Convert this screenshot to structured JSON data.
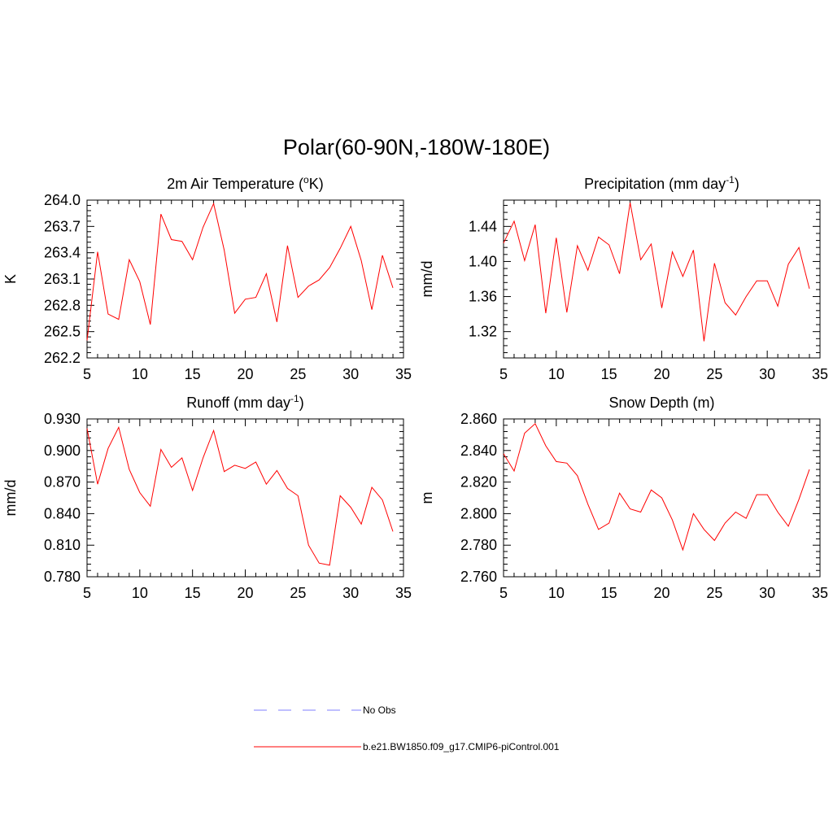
{
  "figure": {
    "title": "Polar(60-90N,-180W-180E)",
    "series_color": "#ff0000",
    "obs_color": "#9999ff"
  },
  "legend": [
    {
      "label": "No Obs",
      "style": "dashed",
      "color": "#9999ff"
    },
    {
      "label": "b.e21.BW1850.f09_g17.CMIP6-piControl.001",
      "style": "solid",
      "color": "#ff0000"
    }
  ],
  "chart_data": [
    {
      "type": "line",
      "title": "2m Air Temperature (",
      "title_sup": "o",
      "title_after": "K)",
      "ylabel": "K",
      "xlabel": "",
      "xlim": [
        5,
        35
      ],
      "ylim": [
        262.2,
        264.0
      ],
      "xticks": [
        5,
        10,
        15,
        20,
        25,
        30,
        35
      ],
      "yticks": [
        "262.2",
        "262.5",
        "262.8",
        "263.1",
        "263.4",
        "263.7",
        "264.0"
      ],
      "series": [
        {
          "name": "b.e21.BW1850.f09_g17.CMIP6-piControl.001",
          "x": [
            5,
            6,
            7,
            8,
            9,
            10,
            11,
            12,
            13,
            14,
            15,
            16,
            17,
            18,
            19,
            20,
            21,
            22,
            23,
            24,
            25,
            26,
            27,
            28,
            29,
            30,
            31,
            32,
            33,
            34
          ],
          "values": [
            262.4,
            263.41,
            262.7,
            262.64,
            263.32,
            263.07,
            262.58,
            263.84,
            263.55,
            263.53,
            263.32,
            263.69,
            263.96,
            263.43,
            262.71,
            262.87,
            262.89,
            263.16,
            262.61,
            263.48,
            262.89,
            263.02,
            263.09,
            263.23,
            263.45,
            263.7,
            263.31,
            262.75,
            263.37,
            263.0
          ]
        }
      ]
    },
    {
      "type": "line",
      "title": "Precipitation (mm day",
      "title_sup": "-1",
      "title_after": ")",
      "ylabel": "mm/d",
      "xlabel": "",
      "xlim": [
        5,
        35
      ],
      "ylim": [
        1.29,
        1.47
      ],
      "xticks": [
        5,
        10,
        15,
        20,
        25,
        30,
        35
      ],
      "yticks": [
        "1.32",
        "1.36",
        "1.40",
        "1.44"
      ],
      "series": [
        {
          "name": "b.e21.BW1850.f09_g17.CMIP6-piControl.001",
          "x": [
            5,
            6,
            7,
            8,
            9,
            10,
            11,
            12,
            13,
            14,
            15,
            16,
            17,
            18,
            19,
            20,
            21,
            22,
            23,
            24,
            25,
            26,
            27,
            28,
            29,
            30,
            31,
            32,
            33,
            34
          ],
          "values": [
            1.421,
            1.446,
            1.401,
            1.442,
            1.341,
            1.427,
            1.342,
            1.418,
            1.39,
            1.428,
            1.419,
            1.386,
            1.467,
            1.402,
            1.42,
            1.347,
            1.411,
            1.383,
            1.413,
            1.309,
            1.398,
            1.353,
            1.339,
            1.36,
            1.378,
            1.378,
            1.349,
            1.397,
            1.416,
            1.369
          ]
        }
      ]
    },
    {
      "type": "line",
      "title": "Runoff (mm day",
      "title_sup": "-1",
      "title_after": ")",
      "ylabel": "mm/d",
      "xlabel": "",
      "xlim": [
        5,
        35
      ],
      "ylim": [
        0.78,
        0.93
      ],
      "xticks": [
        5,
        10,
        15,
        20,
        25,
        30,
        35
      ],
      "yticks": [
        "0.780",
        "0.810",
        "0.840",
        "0.870",
        "0.900",
        "0.930"
      ],
      "series": [
        {
          "name": "b.e21.BW1850.f09_g17.CMIP6-piControl.001",
          "x": [
            5,
            6,
            7,
            8,
            9,
            10,
            11,
            12,
            13,
            14,
            15,
            16,
            17,
            18,
            19,
            20,
            21,
            22,
            23,
            24,
            25,
            26,
            27,
            28,
            29,
            30,
            31,
            32,
            33,
            34
          ],
          "values": [
            0.921,
            0.868,
            0.902,
            0.922,
            0.882,
            0.86,
            0.847,
            0.901,
            0.884,
            0.893,
            0.862,
            0.893,
            0.919,
            0.88,
            0.886,
            0.883,
            0.889,
            0.868,
            0.881,
            0.864,
            0.857,
            0.81,
            0.793,
            0.791,
            0.857,
            0.846,
            0.83,
            0.865,
            0.853,
            0.823
          ]
        }
      ]
    },
    {
      "type": "line",
      "title": "Snow Depth (m)",
      "title_sup": "",
      "title_after": "",
      "ylabel": "m",
      "xlabel": "",
      "xlim": [
        5,
        35
      ],
      "ylim": [
        2.76,
        2.86
      ],
      "xticks": [
        5,
        10,
        15,
        20,
        25,
        30,
        35
      ],
      "yticks": [
        "2.760",
        "2.780",
        "2.800",
        "2.820",
        "2.840",
        "2.860"
      ],
      "series": [
        {
          "name": "b.e21.BW1850.f09_g17.CMIP6-piControl.001",
          "x": [
            5,
            6,
            7,
            8,
            9,
            10,
            11,
            12,
            13,
            14,
            15,
            16,
            17,
            18,
            19,
            20,
            21,
            22,
            23,
            24,
            25,
            26,
            27,
            28,
            29,
            30,
            31,
            32,
            33,
            34
          ],
          "values": [
            2.838,
            2.827,
            2.851,
            2.857,
            2.843,
            2.833,
            2.832,
            2.824,
            2.806,
            2.79,
            2.794,
            2.813,
            2.803,
            2.801,
            2.815,
            2.81,
            2.796,
            2.777,
            2.8,
            2.79,
            2.783,
            2.794,
            2.801,
            2.797,
            2.812,
            2.812,
            2.801,
            2.792,
            2.809,
            2.828
          ]
        }
      ]
    }
  ]
}
